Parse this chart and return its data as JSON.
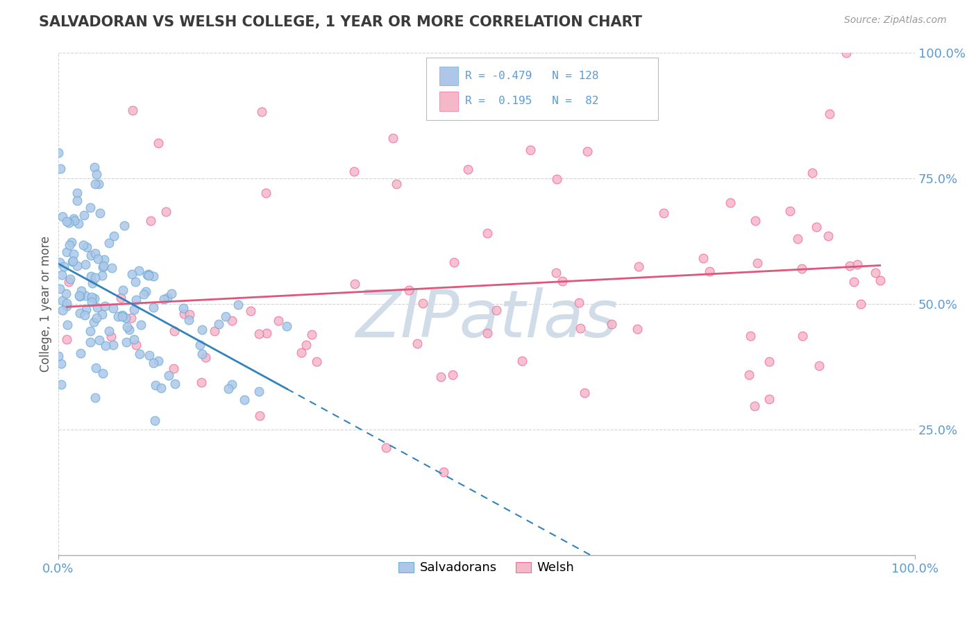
{
  "title": "SALVADORAN VS WELSH COLLEGE, 1 YEAR OR MORE CORRELATION CHART",
  "source": "Source: ZipAtlas.com",
  "ylabel": "College, 1 year or more",
  "xlim": [
    0.0,
    1.0
  ],
  "ylim": [
    0.0,
    1.0
  ],
  "salvadoran_color": "#aec7e8",
  "salvadoran_edge_color": "#6baed6",
  "welsh_color": "#f4b8c8",
  "welsh_edge_color": "#f768a1",
  "salvadoran_line_color": "#3182bd",
  "welsh_line_color": "#e0567a",
  "background_color": "#ffffff",
  "R_salvadoran": -0.479,
  "N_salvadoran": 128,
  "R_welsh": 0.195,
  "N_welsh": 82,
  "watermark_text": "ZIPatlas",
  "watermark_color": "#d0dce8",
  "legend_line1": "R = -0.479   N = 128",
  "legend_line2": "R =  0.195   N =  82",
  "bottom_legend": [
    "Salvadorans",
    "Welsh"
  ],
  "ytick_positions": [
    0.25,
    0.5,
    0.75,
    1.0
  ],
  "ytick_labels": [
    "25.0%",
    "50.0%",
    "75.0%",
    "100.0%"
  ],
  "xtick_positions": [
    0.0,
    1.0
  ],
  "xtick_labels": [
    "0.0%",
    "100.0%"
  ],
  "tick_color": "#5b9bd5",
  "ylabel_color": "#555555",
  "grid_color": "#d0d0d0"
}
